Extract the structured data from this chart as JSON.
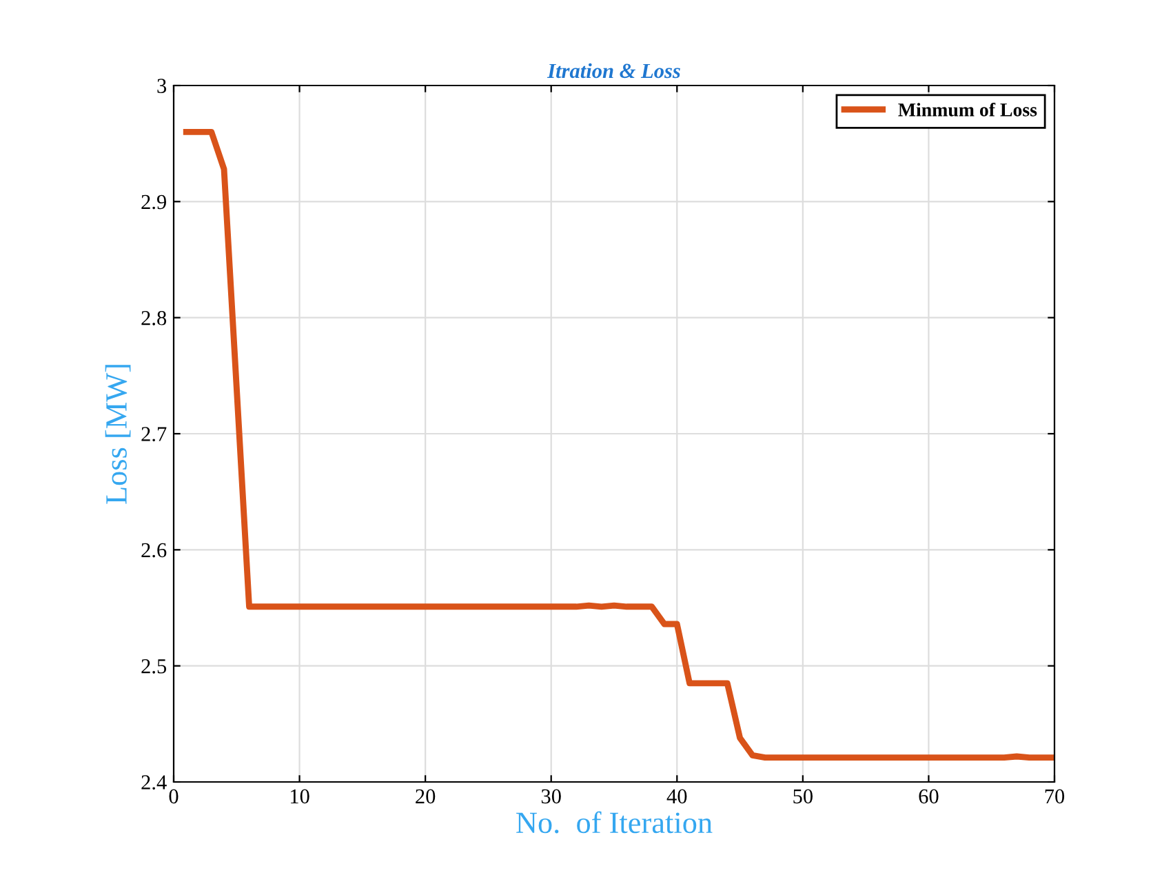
{
  "chart_data": {
    "type": "line",
    "title": "Itration & Loss",
    "xlabel": "No.  of Iteration",
    "ylabel": "Loss [MW]",
    "series": [
      {
        "name": "Minmum of Loss",
        "color": "#d95319",
        "x": [
          1,
          3,
          4,
          5,
          6,
          32,
          33,
          34,
          35,
          36,
          38,
          39,
          40,
          41,
          44,
          45,
          46,
          47,
          66,
          67,
          68,
          70
        ],
        "values": [
          2.96,
          2.96,
          2.928,
          2.74,
          2.551,
          2.551,
          2.552,
          2.551,
          2.552,
          2.551,
          2.551,
          2.536,
          2.536,
          2.485,
          2.485,
          2.438,
          2.423,
          2.421,
          2.421,
          2.422,
          2.421,
          2.421
        ]
      }
    ],
    "xlim": [
      0,
      70
    ],
    "xticks": [
      0,
      10,
      20,
      30,
      40,
      50,
      60,
      70
    ],
    "ylim": [
      2.4,
      3
    ],
    "yticks": [
      2.4,
      2.5,
      2.6,
      2.7,
      2.8,
      2.9,
      3
    ],
    "grid": true,
    "legend": "top right",
    "marker": "none",
    "line_style": "solid"
  }
}
